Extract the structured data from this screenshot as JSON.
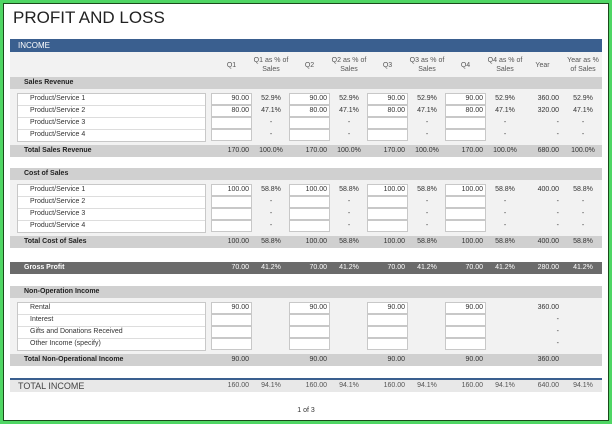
{
  "title": "PROFIT AND LOSS",
  "income_header": "INCOME",
  "columns": [
    "Q1",
    "Q1 as % of Sales",
    "Q2",
    "Q2 as % of Sales",
    "Q3",
    "Q3 as % of Sales",
    "Q4",
    "Q4 as % of Sales",
    "Year",
    "Year as % of Sales"
  ],
  "sections": [
    {
      "title": "Sales Revenue",
      "rows": [
        {
          "label": "Product/Service 1",
          "values": [
            "90.00",
            "52.9%",
            "90.00",
            "52.9%",
            "90.00",
            "52.9%",
            "90.00",
            "52.9%",
            "360.00",
            "52.9%"
          ]
        },
        {
          "label": "Product/Service 2",
          "values": [
            "80.00",
            "47.1%",
            "80.00",
            "47.1%",
            "80.00",
            "47.1%",
            "80.00",
            "47.1%",
            "320.00",
            "47.1%"
          ]
        },
        {
          "label": "Product/Service 3",
          "values": [
            "",
            "-",
            "",
            "-",
            "",
            "-",
            "",
            "-",
            "-",
            "-"
          ]
        },
        {
          "label": "Product/Service 4",
          "values": [
            "",
            "-",
            "",
            "-",
            "",
            "-",
            "",
            "-",
            "-",
            "-"
          ]
        }
      ],
      "total": {
        "label": "Total Sales Revenue",
        "values": [
          "170.00",
          "100.0%",
          "170.00",
          "100.0%",
          "170.00",
          "100.0%",
          "170.00",
          "100.0%",
          "680.00",
          "100.0%"
        ]
      }
    },
    {
      "title": "Cost of Sales",
      "rows": [
        {
          "label": "Product/Service 1",
          "values": [
            "100.00",
            "58.8%",
            "100.00",
            "58.8%",
            "100.00",
            "58.8%",
            "100.00",
            "58.8%",
            "400.00",
            "58.8%"
          ]
        },
        {
          "label": "Product/Service 2",
          "values": [
            "",
            "-",
            "",
            "-",
            "",
            "-",
            "",
            "-",
            "-",
            "-"
          ]
        },
        {
          "label": "Product/Service 3",
          "values": [
            "",
            "-",
            "",
            "-",
            "",
            "-",
            "",
            "-",
            "-",
            "-"
          ]
        },
        {
          "label": "Product/Service 4",
          "values": [
            "",
            "-",
            "",
            "-",
            "",
            "-",
            "",
            "-",
            "-",
            "-"
          ]
        }
      ],
      "total": {
        "label": "Total Cost of Sales",
        "values": [
          "100.00",
          "58.8%",
          "100.00",
          "58.8%",
          "100.00",
          "58.8%",
          "100.00",
          "58.8%",
          "400.00",
          "58.8%"
        ]
      }
    },
    {
      "title": "Non-Operation Income",
      "rows": [
        {
          "label": "Rental",
          "values": [
            "90.00",
            "",
            "90.00",
            "",
            "90.00",
            "",
            "90.00",
            "",
            "360.00",
            ""
          ]
        },
        {
          "label": "Interest",
          "values": [
            "",
            "",
            "",
            "",
            "",
            "",
            "",
            "",
            "-",
            ""
          ]
        },
        {
          "label": "Gifts and Donations Received",
          "values": [
            "",
            "",
            "",
            "",
            "",
            "",
            "",
            "",
            "-",
            ""
          ]
        },
        {
          "label": "Other Income (specify)",
          "values": [
            "",
            "",
            "",
            "",
            "",
            "",
            "",
            "",
            "-",
            ""
          ]
        }
      ],
      "total": {
        "label": "Total Non-Operational Income",
        "values": [
          "90.00",
          "",
          "90.00",
          "",
          "90.00",
          "",
          "90.00",
          "",
          "360.00",
          ""
        ]
      }
    }
  ],
  "gross_profit": {
    "label": "Gross Profit",
    "values": [
      "70.00",
      "41.2%",
      "70.00",
      "41.2%",
      "70.00",
      "41.2%",
      "70.00",
      "41.2%",
      "280.00",
      "41.2%"
    ]
  },
  "total_income": {
    "label": "TOTAL INCOME",
    "values": [
      "160.00",
      "94.1%",
      "160.00",
      "94.1%",
      "160.00",
      "94.1%",
      "160.00",
      "94.1%",
      "640.00",
      "94.1%"
    ]
  },
  "footer": "1 of 3",
  "colors": {
    "income_bar": "#3a5f8f",
    "section_bar": "#d0d0d0",
    "gross_bar": "#6b6b6b",
    "frame": "#4fd664"
  }
}
